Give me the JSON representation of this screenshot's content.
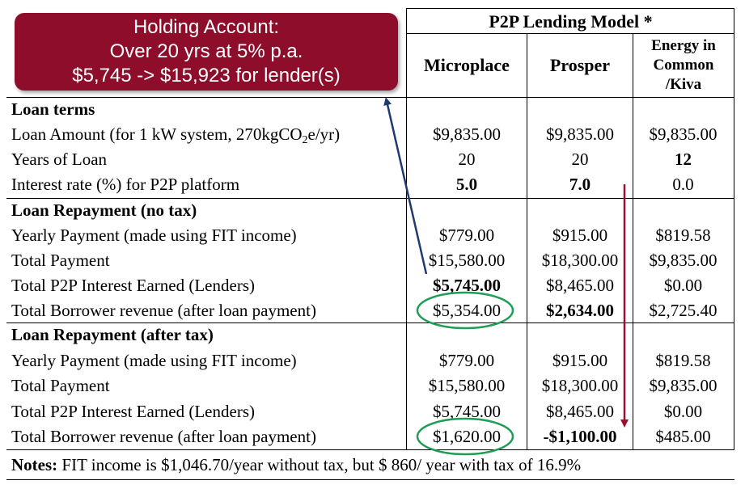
{
  "callout": {
    "line1": "Holding Account:",
    "line2": "Over 20 yrs at 5% p.a.",
    "line3": "$5,745 -> $15,923 for lender(s)"
  },
  "header": {
    "model_title": "P2P Lending Model *",
    "columns": [
      "Microplace",
      "Prosper"
    ],
    "col3_lines": [
      "Energy in",
      "Common",
      "/Kiva"
    ]
  },
  "sections": [
    {
      "title": "Loan terms",
      "rows": [
        {
          "label": "Loan Amount (for 1 kW system, 270kgCO",
          "label_sub": "2",
          "label_after": "e/yr)",
          "values": [
            "$9,835.00",
            "$9,835.00",
            "$9,835.00"
          ],
          "bold": [
            false,
            false,
            false
          ]
        },
        {
          "label": "Years of Loan",
          "values": [
            "20",
            "20",
            "12"
          ],
          "bold": [
            false,
            false,
            true
          ]
        },
        {
          "label": "Interest rate (%) for P2P platform",
          "values": [
            "5.0",
            "7.0",
            "0.0"
          ],
          "bold": [
            true,
            true,
            false
          ]
        }
      ]
    },
    {
      "title": "Loan Repayment (no tax)",
      "rows": [
        {
          "label": "Yearly Payment (made using FIT income)",
          "values": [
            "$779.00",
            "$915.00",
            "$819.58"
          ],
          "bold": [
            false,
            false,
            false
          ]
        },
        {
          "label": "Total Payment",
          "values": [
            "$15,580.00",
            "$18,300.00",
            "$9,835.00"
          ],
          "bold": [
            false,
            false,
            false
          ]
        },
        {
          "label": "Total P2P Interest Earned (Lenders)",
          "values": [
            "$5,745.00",
            "$8,465.00",
            "$0.00"
          ],
          "bold": [
            true,
            false,
            false
          ]
        },
        {
          "label": "Total Borrower revenue (after loan payment)",
          "values": [
            "$5,354.00",
            "$2,634.00",
            "$2,725.40"
          ],
          "bold": [
            false,
            true,
            false
          ]
        }
      ]
    },
    {
      "title": "Loan Repayment (after tax)",
      "rows": [
        {
          "label": "Yearly Payment (made using FIT income)",
          "values": [
            "$779.00",
            "$915.00",
            "$819.58"
          ],
          "bold": [
            false,
            false,
            false
          ]
        },
        {
          "label": "Total Payment",
          "values": [
            "$15,580.00",
            "$18,300.00",
            "$9,835.00"
          ],
          "bold": [
            false,
            false,
            false
          ]
        },
        {
          "label": "Total P2P Interest Earned (Lenders)",
          "values": [
            "$5,745.00",
            "$8,465.00",
            "$0.00"
          ],
          "bold": [
            false,
            false,
            false
          ]
        },
        {
          "label": "Total Borrower revenue (after loan payment)",
          "values": [
            "$1,620.00",
            "-$1,100.00",
            "$485.00"
          ],
          "bold": [
            false,
            true,
            false
          ]
        }
      ]
    }
  ],
  "notes": {
    "prefix": "Notes:",
    "text": " FIT income is $1,046.70/year without tax, but $ 860/ year with tax of 16.9%"
  },
  "colors": {
    "callout_bg": "#8e0d2a",
    "arrow_blue": "#1f3a6e",
    "arrow_red": "#9e1030",
    "ellipse_green": "#1e9e55"
  }
}
